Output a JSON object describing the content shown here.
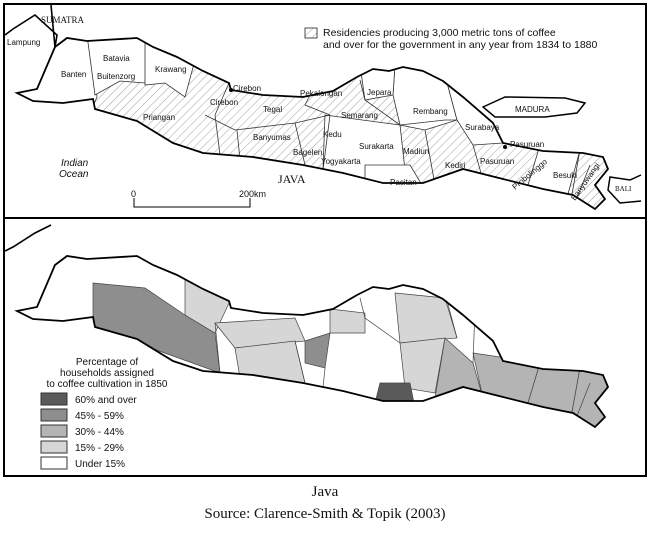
{
  "top_map": {
    "legend": {
      "line1": "Residencies producing 3,000 metric tons of coffee",
      "line2": "and over for the government in any year from 1834 to 1880"
    },
    "labels": {
      "sumatra": "SUMATRA",
      "lampung": "Lampung",
      "banten": "Banten",
      "batavia": "Batavia",
      "buitenzorg": "Buitenzorg",
      "krawang": "Krawang",
      "priangan": "Priangan",
      "cirebon_city": "Cirebon",
      "cirebon": "Cirebon",
      "tegal": "Tegal",
      "pekalongan": "Pekalongan",
      "banyumas": "Banyumas",
      "bagelen": "Bagelen",
      "kedu": "Kedu",
      "semarang": "Semarang",
      "jepara": "Jepara",
      "rembang": "Rembang",
      "surakarta": "Surakarta",
      "yogyakarta": "Yogyakarta",
      "madiun": "Madiun",
      "pacitan": "Pacitan",
      "kediri": "Kediri",
      "surabaya": "Surabaya",
      "pasuruan_city": "Pasuruan",
      "pasuruan": "Pasuruan",
      "probolinggo": "Probolinggo",
      "besuki": "Besuki",
      "banyuwangi": "Banyuwangi",
      "madura": "MADURA",
      "bali": "BALI",
      "java": "JAVA",
      "indian": "Indian",
      "ocean": "Ocean"
    },
    "scale": {
      "start": "0",
      "end": "200km"
    }
  },
  "bottom_map": {
    "legend": {
      "title1": "Percentage of",
      "title2": "households assigned",
      "title3": "to coffee cultivation in 1850",
      "items": [
        {
          "label": "60% and over",
          "color": "#5a5a5a"
        },
        {
          "label": "45% - 59%",
          "color": "#8e8e8e"
        },
        {
          "label": "30% - 44%",
          "color": "#b4b4b4"
        },
        {
          "label": "15% - 29%",
          "color": "#d6d6d6"
        },
        {
          "label": "Under 15%",
          "color": "#ffffff"
        }
      ]
    }
  },
  "caption": {
    "title": "Java",
    "source": "Source: Clarence-Smith & Topik (2003)"
  }
}
